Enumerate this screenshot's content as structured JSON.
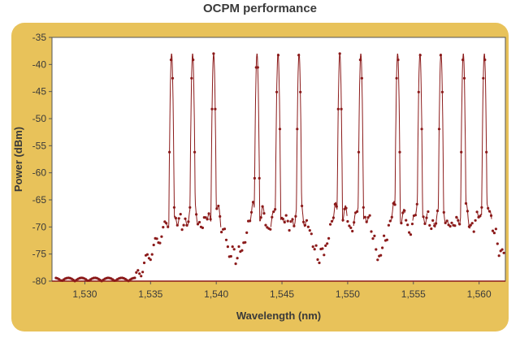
{
  "chart_data": {
    "type": "line",
    "title": "OCPM performance",
    "xlabel": "Wavelength (nm)",
    "ylabel": "Power (dBm)",
    "xlim": [
      1527.5,
      1562
    ],
    "ylim": [
      -80,
      -35
    ],
    "x_ticks": [
      1530,
      1535,
      1540,
      1545,
      1550,
      1555,
      1560
    ],
    "x_tick_labels": [
      "1,530",
      "1,535",
      "1,540",
      "1,545",
      "1,550",
      "1,555",
      "1,560"
    ],
    "y_ticks": [
      -80,
      -75,
      -70,
      -65,
      -60,
      -55,
      -50,
      -45,
      -40,
      -35
    ],
    "y_tick_labels": [
      "-80",
      "-75",
      "-70",
      "-65",
      "-60",
      "-55",
      "-50",
      "-45",
      "-40",
      "-35"
    ],
    "grid": false,
    "series": [
      {
        "style": "line+markers",
        "color": "#8b1a1a",
        "peaks": [
          {
            "x": 1536.6,
            "y": -38
          },
          {
            "x": 1538.2,
            "y": -38
          },
          {
            "x": 1539.8,
            "y": -38
          },
          {
            "x": 1543.1,
            "y": -38
          },
          {
            "x": 1544.7,
            "y": -38
          },
          {
            "x": 1546.3,
            "y": -38
          },
          {
            "x": 1549.4,
            "y": -38
          },
          {
            "x": 1551.0,
            "y": -38
          },
          {
            "x": 1553.8,
            "y": -38
          },
          {
            "x": 1555.5,
            "y": -38
          },
          {
            "x": 1557.1,
            "y": -38
          },
          {
            "x": 1558.8,
            "y": -38
          },
          {
            "x": 1560.4,
            "y": -38
          }
        ],
        "baseline": -80
      }
    ]
  },
  "colors": {
    "panel": "#e8c25a",
    "plot_background": "#ffffff",
    "trace": "#8b1a1a",
    "text": "#3a3a3a"
  }
}
